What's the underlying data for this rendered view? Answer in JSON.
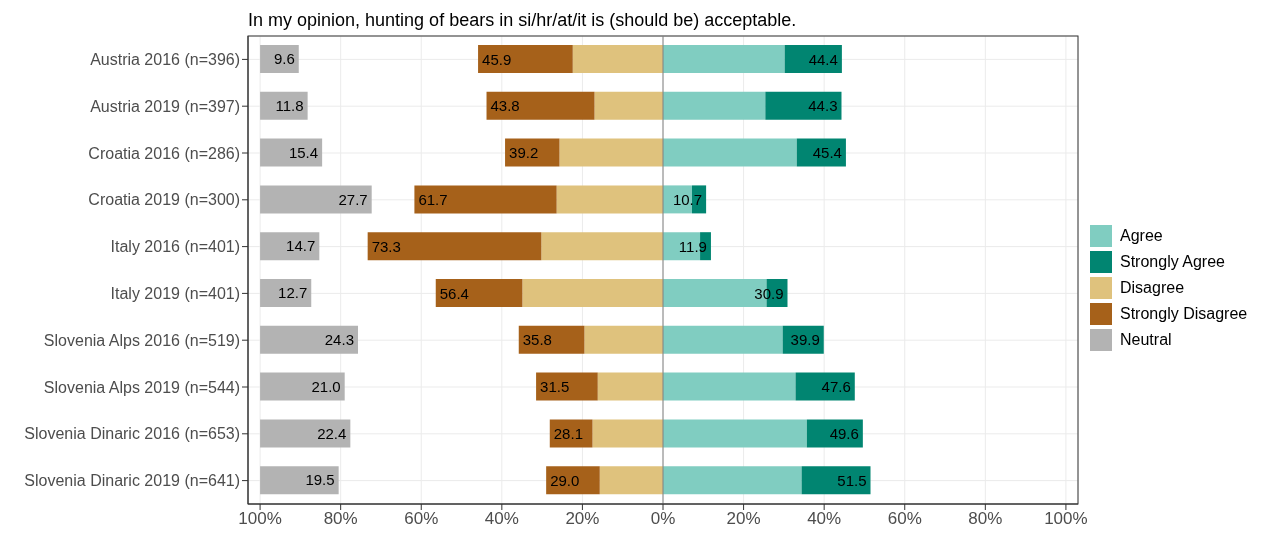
{
  "chart_data": {
    "type": "bar",
    "orientation": "horizontal",
    "title": "In my opinion, hunting of bears in si/hr/at/it is (should be) acceptable.",
    "categories": [
      "Austria 2016 (n=396)",
      "Austria 2019 (n=397)",
      "Croatia 2016 (n=286)",
      "Croatia 2019 (n=300)",
      "Italy 2016 (n=401)",
      "Italy 2019 (n=401)",
      "Slovenia Alps 2016 (n=519)",
      "Slovenia Alps 2019 (n=544)",
      "Slovenia Dinaric 2016 (n=653)",
      "Slovenia Dinaric 2019 (n=641)"
    ],
    "series": [
      {
        "name": "Agree",
        "color": "#80cdc1",
        "values": [
          30.2,
          25.4,
          33.2,
          7.2,
          9.2,
          25.7,
          29.7,
          32.9,
          35.7,
          34.4
        ],
        "base": [
          0,
          0,
          0,
          0,
          0,
          0,
          0,
          0,
          0,
          0
        ]
      },
      {
        "name": "Strongly Agree",
        "color": "#018571",
        "values": [
          14.2,
          18.9,
          12.2,
          3.5,
          2.7,
          5.2,
          10.2,
          14.7,
          13.9,
          17.1
        ],
        "base": [
          30.2,
          25.4,
          33.2,
          7.2,
          9.2,
          25.7,
          29.7,
          32.9,
          35.7,
          34.4
        ]
      },
      {
        "name": "Disagree",
        "color": "#dfc27d",
        "values": [
          -22.4,
          -17.0,
          -25.7,
          -26.4,
          -30.2,
          -34.9,
          -19.5,
          -16.2,
          -17.5,
          -15.7
        ],
        "base": [
          0,
          0,
          0,
          0,
          0,
          0,
          0,
          0,
          0,
          0
        ]
      },
      {
        "name": "Strongly Disagree",
        "color": "#a6611a",
        "values": [
          -23.5,
          -26.8,
          -13.5,
          -35.3,
          -43.1,
          -21.5,
          -16.3,
          -15.3,
          -10.6,
          -13.3
        ],
        "base": [
          -22.4,
          -17.0,
          -25.7,
          -26.4,
          -30.2,
          -34.9,
          -19.5,
          -16.2,
          -17.5,
          -15.7
        ]
      },
      {
        "name": "Neutral",
        "color": "#b3b3b3",
        "values": [
          9.6,
          11.8,
          15.4,
          27.7,
          14.7,
          12.7,
          24.3,
          21.0,
          22.4,
          19.5
        ],
        "base": [
          -100,
          -100,
          -100,
          -100,
          -100,
          -100,
          -100,
          -100,
          -100,
          -100
        ],
        "value_labels": [
          "9.6",
          "11.8",
          "15.4",
          "27.7",
          "14.7",
          "12.7",
          "24.3",
          "21.0",
          "22.4",
          "19.5"
        ]
      }
    ],
    "annotations": [
      {
        "text": "44.4",
        "x": 44.4,
        "y": "Austria 2016 (n=396)"
      },
      {
        "text": "44.3",
        "x": 44.3,
        "y": "Austria 2019 (n=397)"
      },
      {
        "text": "45.4",
        "x": 45.4,
        "y": "Croatia 2016 (n=286)"
      },
      {
        "text": "10.7",
        "x": 10.7,
        "y": "Croatia 2019 (n=300)"
      },
      {
        "text": "11.9",
        "x": 11.9,
        "y": "Italy 2016 (n=401)"
      },
      {
        "text": "30.9",
        "x": 30.9,
        "y": "Italy 2019 (n=401)"
      },
      {
        "text": "39.9",
        "x": 39.9,
        "y": "Slovenia Alps 2016 (n=519)"
      },
      {
        "text": "47.6",
        "x": 47.6,
        "y": "Slovenia Alps 2019 (n=544)"
      },
      {
        "text": "49.6",
        "x": 49.6,
        "y": "Slovenia Dinaric 2016 (n=653)"
      },
      {
        "text": "51.5",
        "x": 51.5,
        "y": "Slovenia Dinaric 2019 (n=641)"
      },
      {
        "text": "45.9",
        "x": -45.9,
        "y": "Austria 2016 (n=396)"
      },
      {
        "text": "43.8",
        "x": -43.8,
        "y": "Austria 2019 (n=397)"
      },
      {
        "text": "39.2",
        "x": -39.2,
        "y": "Croatia 2016 (n=286)"
      },
      {
        "text": "61.7",
        "x": -61.7,
        "y": "Croatia 2019 (n=300)"
      },
      {
        "text": "73.3",
        "x": -73.3,
        "y": "Italy 2016 (n=401)"
      },
      {
        "text": "56.4",
        "x": -56.4,
        "y": "Italy 2019 (n=401)"
      },
      {
        "text": "35.8",
        "x": -35.8,
        "y": "Slovenia Alps 2016 (n=519)"
      },
      {
        "text": "31.5",
        "x": -31.5,
        "y": "Slovenia Alps 2019 (n=544)"
      },
      {
        "text": "28.1",
        "x": -28.1,
        "y": "Slovenia Dinaric 2016 (n=653)"
      },
      {
        "text": "29.0",
        "x": -29.0,
        "y": "Slovenia Dinaric 2019 (n=641)"
      }
    ],
    "xlim": [
      -103,
      103
    ],
    "xticks": [
      {
        "value": -100,
        "label": "100%"
      },
      {
        "value": -80,
        "label": "80%"
      },
      {
        "value": -60,
        "label": "60%"
      },
      {
        "value": -40,
        "label": "40%"
      },
      {
        "value": -20,
        "label": "20%"
      },
      {
        "value": 0,
        "label": "0%"
      },
      {
        "value": 20,
        "label": "20%"
      },
      {
        "value": 40,
        "label": "40%"
      },
      {
        "value": 60,
        "label": "60%"
      },
      {
        "value": 80,
        "label": "80%"
      },
      {
        "value": 100,
        "label": "100%"
      }
    ],
    "ref_lines": [
      {
        "axis": "x",
        "value": 0,
        "color": "#808080"
      }
    ],
    "grid": true,
    "legend": "right"
  }
}
